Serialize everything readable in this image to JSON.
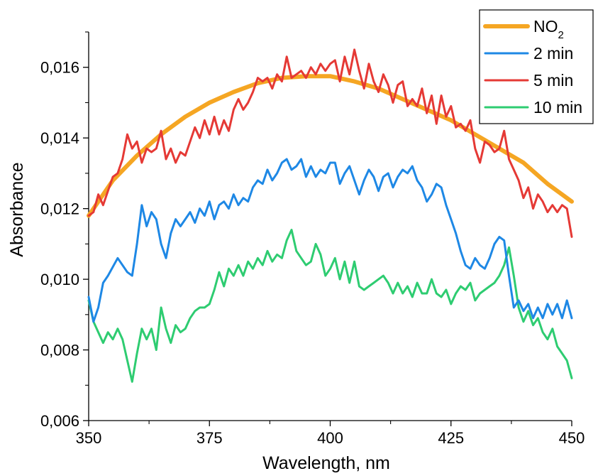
{
  "chart_data": {
    "type": "line",
    "xlabel": "Wavelength, nm",
    "ylabel": "Absorbance",
    "xlim": [
      350,
      450
    ],
    "ylim": [
      0.006,
      0.017
    ],
    "grid": false,
    "legend_position": "top-right",
    "x_ticks": [
      350,
      375,
      400,
      425,
      450
    ],
    "x_tick_labels": [
      "350",
      "375",
      "400",
      "425",
      "450"
    ],
    "y_ticks": [
      0.006,
      0.008,
      0.01,
      0.012,
      0.014,
      0.016
    ],
    "y_tick_labels": [
      "0,006",
      "0,008",
      "0,010",
      "0,012",
      "0,014",
      "0,016"
    ],
    "series": [
      {
        "name": "NO",
        "name_subscript": "2",
        "color": "#f5a623",
        "x": [
          350,
          355,
          360,
          365,
          370,
          375,
          380,
          385,
          390,
          395,
          400,
          405,
          410,
          415,
          420,
          425,
          430,
          435,
          440,
          445,
          450
        ],
        "y": [
          0.0118,
          0.0128,
          0.0135,
          0.0141,
          0.0146,
          0.015,
          0.0153,
          0.01555,
          0.0157,
          0.01575,
          0.01575,
          0.0156,
          0.0154,
          0.0151,
          0.0148,
          0.0145,
          0.0141,
          0.0137,
          0.0133,
          0.0127,
          0.0122
        ]
      },
      {
        "name": "2 min",
        "color": "#1e88e5",
        "x": [
          350,
          351,
          352,
          353,
          354,
          356,
          358,
          359,
          360,
          361,
          362,
          363,
          364,
          365,
          366,
          367,
          368,
          369,
          370,
          371,
          372,
          373,
          374,
          375,
          376,
          377,
          378,
          379,
          380,
          381,
          382,
          383,
          384,
          385,
          386,
          387,
          388,
          389,
          390,
          391,
          392,
          393,
          394,
          395,
          396,
          397,
          398,
          399,
          400,
          401,
          402,
          403,
          404,
          405,
          406,
          407,
          408,
          409,
          410,
          411,
          412,
          413,
          414,
          415,
          416,
          417,
          418,
          419,
          420,
          421,
          422,
          423,
          424,
          425,
          426,
          427,
          428,
          429,
          430,
          431,
          432,
          433,
          434,
          435,
          436,
          437,
          438,
          439,
          440,
          441,
          442,
          443,
          444,
          445,
          446,
          447,
          448,
          449,
          450
        ],
        "y": [
          0.0095,
          0.0088,
          0.0092,
          0.0099,
          0.0101,
          0.0106,
          0.0102,
          0.0101,
          0.011,
          0.0121,
          0.0115,
          0.0119,
          0.0117,
          0.011,
          0.0106,
          0.0113,
          0.0117,
          0.0115,
          0.0117,
          0.0119,
          0.0116,
          0.012,
          0.0118,
          0.0122,
          0.0117,
          0.0121,
          0.0122,
          0.012,
          0.0124,
          0.0121,
          0.0123,
          0.0122,
          0.0126,
          0.0128,
          0.0127,
          0.0131,
          0.0128,
          0.013,
          0.0133,
          0.0134,
          0.0131,
          0.0132,
          0.0134,
          0.0129,
          0.0132,
          0.0129,
          0.0131,
          0.013,
          0.0133,
          0.0133,
          0.0127,
          0.013,
          0.0132,
          0.0128,
          0.0124,
          0.0128,
          0.0131,
          0.0129,
          0.0125,
          0.0129,
          0.013,
          0.0126,
          0.0129,
          0.0131,
          0.013,
          0.0132,
          0.0128,
          0.0126,
          0.0122,
          0.0124,
          0.0127,
          0.0126,
          0.0121,
          0.0117,
          0.0113,
          0.0108,
          0.0104,
          0.0103,
          0.0106,
          0.0104,
          0.0103,
          0.0106,
          0.011,
          0.0112,
          0.0111,
          0.0101,
          0.0092,
          0.0094,
          0.0091,
          0.0093,
          0.0089,
          0.0092,
          0.0089,
          0.0093,
          0.009,
          0.0093,
          0.0089,
          0.0094,
          0.0089
        ]
      },
      {
        "name": "5 min",
        "color": "#e53935",
        "x": [
          350,
          351,
          352,
          353,
          354,
          355,
          356,
          357,
          358,
          359,
          360,
          361,
          362,
          363,
          364,
          365,
          366,
          367,
          368,
          369,
          370,
          371,
          372,
          373,
          374,
          375,
          376,
          377,
          378,
          379,
          380,
          381,
          382,
          383,
          384,
          385,
          386,
          387,
          388,
          389,
          390,
          391,
          392,
          393,
          394,
          395,
          396,
          397,
          398,
          399,
          400,
          401,
          402,
          403,
          404,
          405,
          406,
          407,
          408,
          409,
          410,
          411,
          412,
          413,
          414,
          415,
          416,
          417,
          418,
          419,
          420,
          421,
          422,
          423,
          424,
          425,
          426,
          427,
          428,
          429,
          430,
          431,
          432,
          433,
          434,
          435,
          436,
          437,
          438,
          439,
          440,
          441,
          442,
          443,
          444,
          445,
          446,
          447,
          448,
          449,
          450
        ],
        "y": [
          0.0118,
          0.0119,
          0.0124,
          0.0121,
          0.0125,
          0.0129,
          0.013,
          0.0134,
          0.0141,
          0.0137,
          0.0139,
          0.0133,
          0.0137,
          0.0136,
          0.0137,
          0.0142,
          0.0134,
          0.0137,
          0.0133,
          0.0136,
          0.0135,
          0.0139,
          0.0143,
          0.014,
          0.0145,
          0.0141,
          0.0146,
          0.0141,
          0.0145,
          0.0142,
          0.0148,
          0.0151,
          0.0148,
          0.015,
          0.0153,
          0.0157,
          0.0156,
          0.0157,
          0.0154,
          0.0158,
          0.0156,
          0.0163,
          0.0157,
          0.0158,
          0.0159,
          0.0157,
          0.016,
          0.0158,
          0.0161,
          0.0159,
          0.0161,
          0.0162,
          0.0156,
          0.0163,
          0.0158,
          0.0165,
          0.0159,
          0.0154,
          0.0161,
          0.0156,
          0.0153,
          0.0158,
          0.0155,
          0.015,
          0.0155,
          0.0156,
          0.0149,
          0.0151,
          0.0149,
          0.0154,
          0.0147,
          0.0152,
          0.0144,
          0.0152,
          0.0146,
          0.0149,
          0.0143,
          0.0144,
          0.0142,
          0.0145,
          0.0137,
          0.0133,
          0.0139,
          0.0138,
          0.0136,
          0.0137,
          0.0142,
          0.0134,
          0.0131,
          0.0128,
          0.0123,
          0.0126,
          0.012,
          0.0124,
          0.0122,
          0.0119,
          0.0121,
          0.0119,
          0.0121,
          0.012,
          0.0112
        ]
      },
      {
        "name": "10 min",
        "color": "#2ecc71",
        "x": [
          350,
          351,
          352,
          353,
          354,
          355,
          356,
          357,
          358,
          359,
          360,
          361,
          362,
          363,
          364,
          365,
          366,
          367,
          368,
          369,
          370,
          371,
          372,
          373,
          374,
          375,
          376,
          377,
          378,
          379,
          380,
          381,
          382,
          383,
          384,
          385,
          386,
          387,
          388,
          389,
          390,
          391,
          392,
          393,
          394,
          395,
          396,
          397,
          398,
          399,
          400,
          401,
          402,
          403,
          404,
          405,
          406,
          407,
          408,
          409,
          410,
          411,
          412,
          413,
          414,
          415,
          416,
          417,
          418,
          419,
          420,
          421,
          422,
          423,
          424,
          425,
          426,
          427,
          428,
          429,
          430,
          431,
          432,
          433,
          434,
          435,
          436,
          437,
          438,
          439,
          440,
          441,
          442,
          443,
          444,
          445,
          446,
          447,
          448,
          449,
          450
        ],
        "y": [
          0.0094,
          0.0088,
          0.0085,
          0.0082,
          0.0085,
          0.0083,
          0.0086,
          0.0083,
          0.0077,
          0.0071,
          0.0079,
          0.0086,
          0.0083,
          0.0086,
          0.008,
          0.0092,
          0.0086,
          0.0082,
          0.0087,
          0.0085,
          0.0086,
          0.0089,
          0.0091,
          0.0092,
          0.0092,
          0.0093,
          0.0097,
          0.0102,
          0.0098,
          0.0103,
          0.0101,
          0.0104,
          0.0101,
          0.0105,
          0.0103,
          0.0106,
          0.0104,
          0.0108,
          0.0105,
          0.0107,
          0.0106,
          0.0111,
          0.0114,
          0.0108,
          0.0106,
          0.0104,
          0.0105,
          0.011,
          0.0107,
          0.0101,
          0.0103,
          0.0106,
          0.01,
          0.0105,
          0.0099,
          0.0105,
          0.0098,
          0.0097,
          0.0098,
          0.0099,
          0.01,
          0.0101,
          0.0099,
          0.0096,
          0.0099,
          0.0096,
          0.0098,
          0.0095,
          0.0099,
          0.0096,
          0.0096,
          0.01,
          0.0096,
          0.0095,
          0.0097,
          0.0093,
          0.0096,
          0.0098,
          0.0097,
          0.0099,
          0.0094,
          0.0096,
          0.0097,
          0.0098,
          0.0099,
          0.0101,
          0.0104,
          0.0109,
          0.0101,
          0.0092,
          0.0088,
          0.0091,
          0.0087,
          0.0089,
          0.0085,
          0.0083,
          0.0086,
          0.0081,
          0.0079,
          0.0077,
          0.0072
        ]
      }
    ]
  }
}
